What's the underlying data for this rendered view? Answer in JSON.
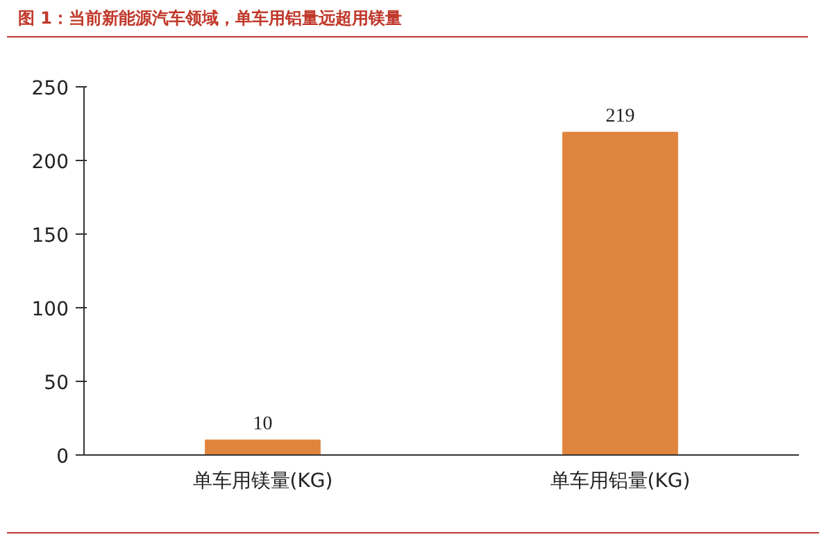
{
  "chart_data": {
    "type": "bar",
    "title": "图 1：当前新能源汽车领域，单车用铝量远超用镁量",
    "categories": [
      "单车用镁量(KG)",
      "单车用铝量(KG)"
    ],
    "values": [
      10,
      219
    ],
    "color": "#e0853e",
    "ylim": [
      0,
      250
    ],
    "yticks": [
      0,
      50,
      100,
      150,
      200,
      250
    ],
    "grid": false,
    "data_labels": true
  }
}
